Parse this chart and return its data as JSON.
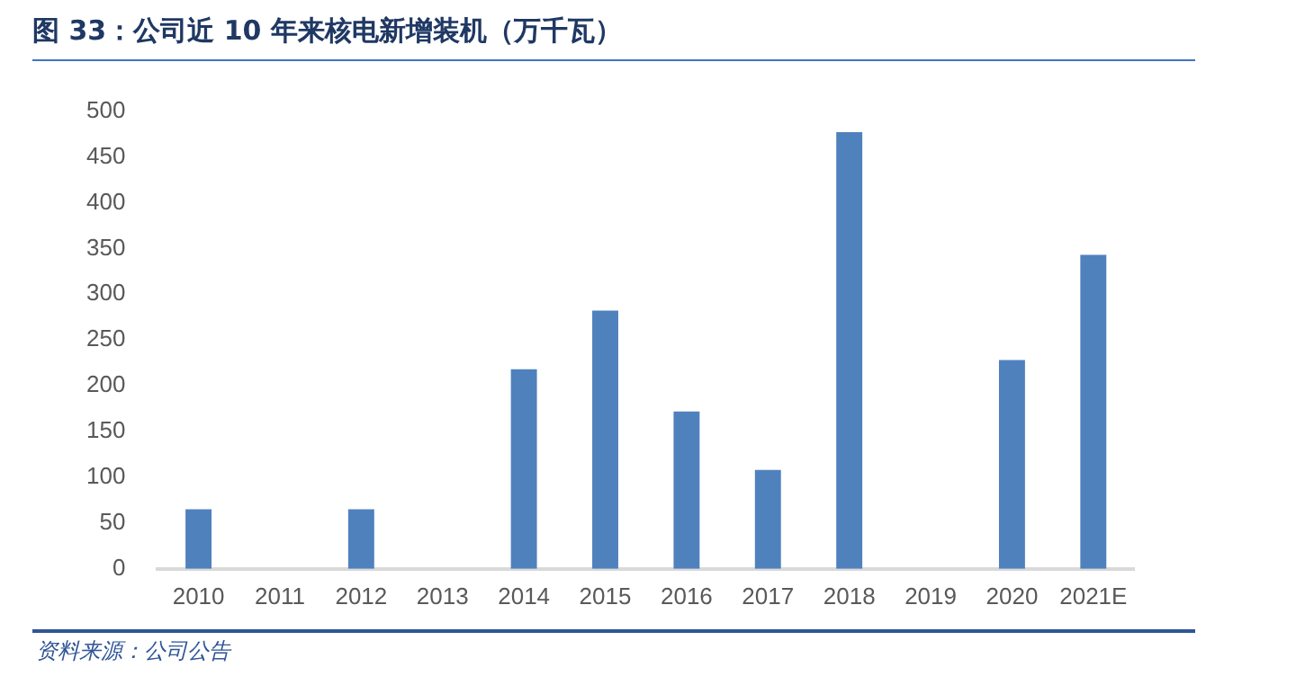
{
  "chart_data": {
    "type": "bar",
    "title": "图 33：公司近 10 年来核电新增装机（万千瓦）",
    "categories": [
      "2010",
      "2011",
      "2012",
      "2013",
      "2014",
      "2015",
      "2016",
      "2017",
      "2018",
      "2019",
      "2020",
      "2021E"
    ],
    "values": [
      65,
      0,
      65,
      0,
      218,
      282,
      172,
      108,
      477,
      0,
      228,
      343
    ],
    "color": "#4f81bd",
    "ylim": [
      0,
      500
    ],
    "yticks": [
      0,
      50,
      100,
      150,
      200,
      250,
      300,
      350,
      400,
      450,
      500
    ],
    "grid": false,
    "legend": false,
    "annotations": [
      "资料来源：公司公告"
    ]
  }
}
